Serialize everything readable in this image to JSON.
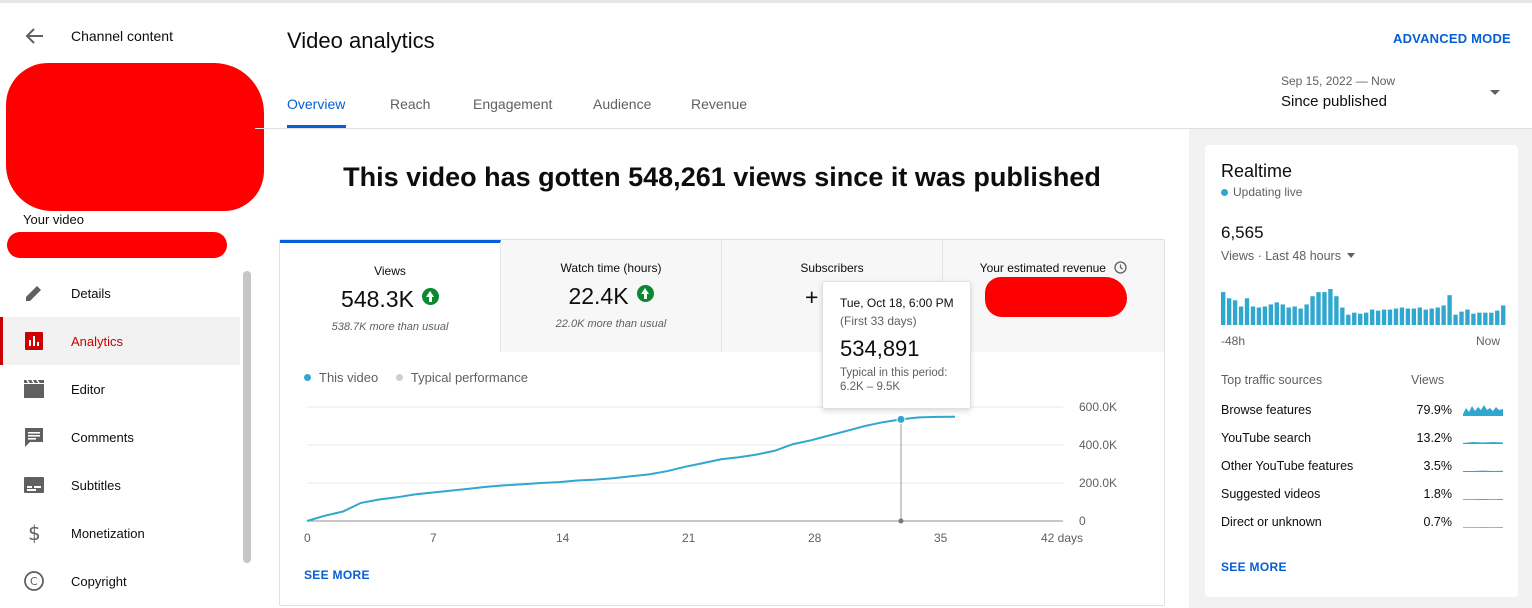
{
  "sidebar": {
    "title": "Channel content",
    "your_video": "Your video",
    "nav": [
      {
        "label": "Details",
        "icon": "pencil-icon",
        "active": false
      },
      {
        "label": "Analytics",
        "icon": "analytics-icon",
        "active": true
      },
      {
        "label": "Editor",
        "icon": "clapperboard-icon",
        "active": false
      },
      {
        "label": "Comments",
        "icon": "comment-icon",
        "active": false
      },
      {
        "label": "Subtitles",
        "icon": "subtitles-icon",
        "active": false
      },
      {
        "label": "Monetization",
        "icon": "dollar-icon",
        "active": false
      },
      {
        "label": "Copyright",
        "icon": "copyright-icon",
        "active": false
      }
    ]
  },
  "header": {
    "title": "Video analytics",
    "advanced_mode": "ADVANCED MODE",
    "tabs": [
      "Overview",
      "Reach",
      "Engagement",
      "Audience",
      "Revenue"
    ],
    "active_tab": "Overview",
    "date_range": {
      "dates": "Sep 15, 2022 — Now",
      "label": "Since published"
    }
  },
  "headline": "This video has gotten 548,261 views since it was published",
  "metrics": [
    {
      "label": "Views",
      "value": "548.3K",
      "sub": "538.7K more than usual",
      "trend": "up"
    },
    {
      "label": "Watch time (hours)",
      "value": "22.4K",
      "sub": "22.0K more than usual",
      "trend": "up"
    },
    {
      "label": "Subscribers",
      "value": "+",
      "sub": "",
      "trend": ""
    },
    {
      "label": "Your estimated revenue",
      "value": "",
      "sub": "",
      "trend": ""
    }
  ],
  "legend": {
    "this_video": "This video",
    "typical": "Typical performance"
  },
  "see_more": "SEE MORE",
  "tooltip": {
    "date": "Tue, Oct 18, 6:00 PM",
    "period": "(First 33 days)",
    "value": "534,891",
    "typical_label": "Typical in this period:",
    "typical_range": "6.2K – 9.5K"
  },
  "colors": {
    "accent": "#065fd4",
    "active_nav": "#cc0000",
    "line": "#2fa7cf",
    "up": "#0a8a2f"
  },
  "chart_data": {
    "type": "line",
    "x_ticks": [
      "0",
      "7",
      "14",
      "21",
      "28",
      "35",
      "42 days"
    ],
    "y_ticks": [
      "0",
      "200.0K",
      "400.0K",
      "600.0K"
    ],
    "xlim": [
      0,
      42
    ],
    "ylim": [
      0,
      600000
    ],
    "series": [
      {
        "name": "This video",
        "x": [
          0,
          1,
          2,
          3,
          4,
          5,
          6,
          7,
          8,
          9,
          10,
          11,
          12,
          13,
          14,
          15,
          16,
          17,
          18,
          19,
          20,
          21,
          22,
          23,
          24,
          25,
          26,
          27,
          28,
          29,
          30,
          31,
          32,
          33,
          34,
          35,
          36
        ],
        "y": [
          0,
          28000,
          50000,
          95000,
          113000,
          125000,
          140000,
          150000,
          160000,
          170000,
          180000,
          188000,
          193000,
          200000,
          205000,
          213000,
          218000,
          225000,
          235000,
          245000,
          262000,
          285000,
          305000,
          325000,
          336000,
          350000,
          370000,
          405000,
          425000,
          450000,
          475000,
          500000,
          520000,
          534891,
          545000,
          548000,
          548261
        ]
      }
    ],
    "highlight": {
      "x": 33,
      "y": 534891
    }
  },
  "realtime": {
    "title": "Realtime",
    "live": "Updating live",
    "count": "6,565",
    "views_label": "Views · Last 48 hours",
    "axis_left": "-48h",
    "axis_right": "Now",
    "bars": [
      32,
      26,
      24,
      18,
      26,
      18,
      17,
      18,
      20,
      22,
      20,
      17,
      18,
      16,
      20,
      28,
      32,
      32,
      35,
      28,
      17,
      10,
      12,
      11,
      12,
      15,
      14,
      15,
      15,
      16,
      17,
      16,
      16,
      17,
      15,
      16,
      17,
      19,
      29,
      10,
      13,
      15,
      11,
      12,
      12,
      12,
      14,
      19
    ],
    "traffic_header": "Top traffic sources",
    "traffic_views": "Views",
    "traffic": [
      {
        "source": "Browse features",
        "pct": "79.9%"
      },
      {
        "source": "YouTube search",
        "pct": "13.2%"
      },
      {
        "source": "Other YouTube features",
        "pct": "3.5%"
      },
      {
        "source": "Suggested videos",
        "pct": "1.8%"
      },
      {
        "source": "Direct or unknown",
        "pct": "0.7%"
      }
    ],
    "see_more": "SEE MORE"
  }
}
